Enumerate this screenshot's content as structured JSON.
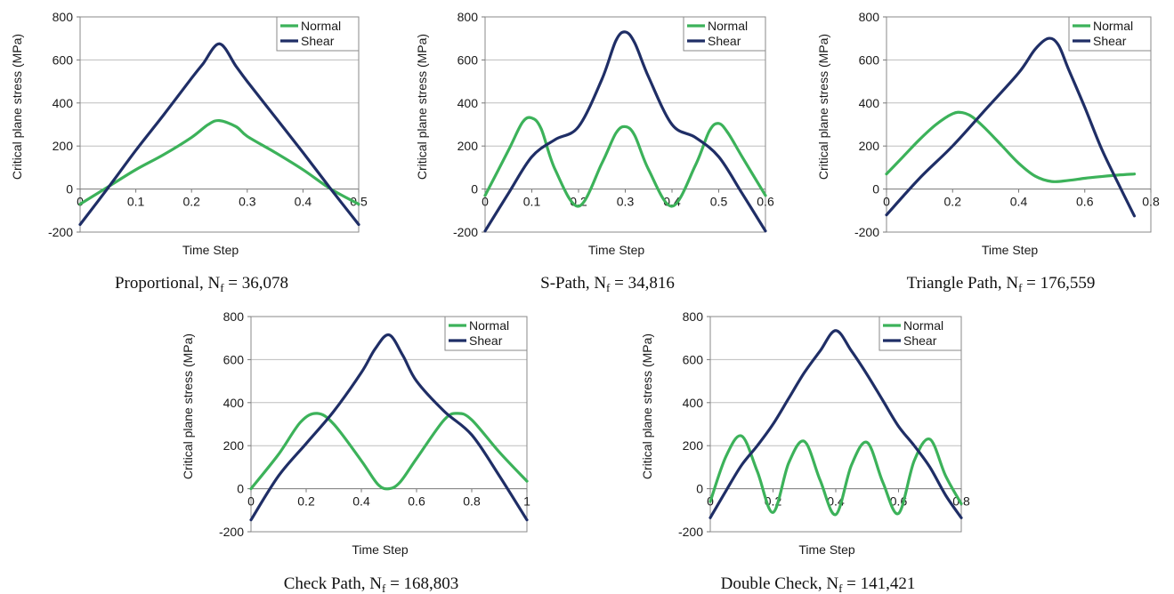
{
  "colors": {
    "normal": "#3cb25a",
    "shear": "#1f2e66",
    "grid": "#bdbdbd",
    "axis": "#8a8a8a"
  },
  "chart_data": [
    {
      "type": "line",
      "caption": "Proportional, N",
      "caption_sub": "f",
      "caption_value": " = 36,078",
      "xlabel": "Time Step",
      "ylabel": "Critical plane stress (MPa)",
      "xlim": [
        0,
        0.5
      ],
      "ylim": [
        -200,
        800
      ],
      "xticks": [
        0,
        0.1,
        0.2,
        0.3,
        0.4,
        0.5
      ],
      "xtick_labels": [
        "0",
        "0.1",
        "0.2",
        "0.3",
        "0.4",
        "0.5"
      ],
      "yticks": [
        -200,
        0,
        200,
        400,
        600,
        800
      ],
      "ytick_labels": [
        "-200",
        "0",
        "200",
        "400",
        "600",
        "800"
      ],
      "grid": true,
      "legend_position": "top-right",
      "series": [
        {
          "name": "Normal",
          "x": [
            0,
            0.05,
            0.1,
            0.15,
            0.2,
            0.23,
            0.25,
            0.28,
            0.3,
            0.35,
            0.4,
            0.45,
            0.5
          ],
          "y": [
            -70,
            10,
            90,
            160,
            240,
            300,
            318,
            290,
            245,
            170,
            90,
            0,
            -70
          ]
        },
        {
          "name": "Shear",
          "x": [
            0,
            0.05,
            0.1,
            0.15,
            0.2,
            0.22,
            0.25,
            0.28,
            0.3,
            0.35,
            0.4,
            0.45,
            0.5
          ],
          "y": [
            -165,
            5,
            180,
            345,
            515,
            580,
            675,
            570,
            500,
            335,
            170,
            0,
            -165
          ]
        }
      ]
    },
    {
      "type": "line",
      "caption": "S-Path, N",
      "caption_sub": "f",
      "caption_value": " = 34,816",
      "xlabel": "Time Step",
      "ylabel": "Critical plane stress (MPa)",
      "xlim": [
        0,
        0.6
      ],
      "ylim": [
        -200,
        800
      ],
      "xticks": [
        0,
        0.1,
        0.2,
        0.3,
        0.4,
        0.5,
        0.6
      ],
      "xtick_labels": [
        "0",
        "0.1",
        "0.2",
        "0.3",
        "0.4",
        "0.5",
        "0.6"
      ],
      "yticks": [
        -200,
        0,
        200,
        400,
        600,
        800
      ],
      "ytick_labels": [
        "-200",
        "0",
        "200",
        "400",
        "600",
        "800"
      ],
      "grid": true,
      "legend_position": "top-right",
      "series": [
        {
          "name": "Normal",
          "x": [
            0,
            0.05,
            0.08,
            0.1,
            0.12,
            0.15,
            0.2,
            0.25,
            0.28,
            0.3,
            0.32,
            0.35,
            0.4,
            0.45,
            0.48,
            0.5,
            0.52,
            0.55,
            0.6
          ],
          "y": [
            -30,
            180,
            310,
            330,
            280,
            90,
            -80,
            120,
            260,
            290,
            250,
            90,
            -80,
            110,
            270,
            305,
            260,
            150,
            -30
          ]
        },
        {
          "name": "Shear",
          "x": [
            0,
            0.05,
            0.1,
            0.15,
            0.2,
            0.25,
            0.28,
            0.3,
            0.32,
            0.35,
            0.4,
            0.45,
            0.5,
            0.55,
            0.6
          ],
          "y": [
            -195,
            -20,
            150,
            230,
            290,
            510,
            690,
            730,
            680,
            520,
            300,
            240,
            150,
            -20,
            -195
          ]
        }
      ]
    },
    {
      "type": "line",
      "caption": "Triangle Path, N",
      "caption_sub": "f",
      "caption_value": " = 176,559",
      "xlabel": "Time Step",
      "ylabel": "Critical plane stress (MPa)",
      "xlim": [
        0,
        0.8
      ],
      "ylim": [
        -200,
        800
      ],
      "xticks": [
        0,
        0.2,
        0.4,
        0.6,
        0.8
      ],
      "xtick_labels": [
        "0",
        "0.2",
        "0.4",
        "0.6",
        "0.8"
      ],
      "yticks": [
        -200,
        0,
        200,
        400,
        600,
        800
      ],
      "ytick_labels": [
        "-200",
        "0",
        "200",
        "400",
        "600",
        "800"
      ],
      "grid": true,
      "legend_position": "top-right",
      "series": [
        {
          "name": "Normal",
          "x": [
            0,
            0.05,
            0.1,
            0.15,
            0.2,
            0.23,
            0.26,
            0.3,
            0.35,
            0.4,
            0.45,
            0.5,
            0.55,
            0.6,
            0.65,
            0.7,
            0.75
          ],
          "y": [
            70,
            150,
            230,
            300,
            350,
            355,
            335,
            280,
            200,
            120,
            60,
            35,
            40,
            50,
            58,
            65,
            70
          ]
        },
        {
          "name": "Shear",
          "x": [
            0,
            0.1,
            0.2,
            0.3,
            0.4,
            0.45,
            0.49,
            0.52,
            0.55,
            0.6,
            0.65,
            0.7,
            0.75
          ],
          "y": [
            -120,
            50,
            200,
            370,
            540,
            650,
            700,
            670,
            560,
            380,
            190,
            30,
            -125
          ]
        }
      ]
    },
    {
      "type": "line",
      "caption": "Check Path, N",
      "caption_sub": "f",
      "caption_value": " = 168,803",
      "xlabel": "Time Step",
      "ylabel": "Critical plane stress (MPa)",
      "xlim": [
        0,
        1
      ],
      "ylim": [
        -200,
        800
      ],
      "xticks": [
        0,
        0.2,
        0.4,
        0.6,
        0.8,
        1
      ],
      "xtick_labels": [
        "0",
        "0.2",
        "0.4",
        "0.6",
        "0.8",
        "1"
      ],
      "yticks": [
        -200,
        0,
        200,
        400,
        600,
        800
      ],
      "ytick_labels": [
        "-200",
        "0",
        "200",
        "400",
        "600",
        "800"
      ],
      "grid": true,
      "legend_position": "top-right",
      "series": [
        {
          "name": "Normal",
          "x": [
            0,
            0.1,
            0.18,
            0.24,
            0.3,
            0.4,
            0.46,
            0.5,
            0.54,
            0.6,
            0.7,
            0.75,
            0.8,
            0.9,
            1
          ],
          "y": [
            0,
            160,
            310,
            350,
            300,
            130,
            20,
            0,
            30,
            140,
            320,
            350,
            320,
            170,
            35
          ]
        },
        {
          "name": "Shear",
          "x": [
            0,
            0.1,
            0.2,
            0.3,
            0.4,
            0.45,
            0.5,
            0.55,
            0.6,
            0.7,
            0.8,
            0.9,
            1
          ],
          "y": [
            -145,
            60,
            210,
            360,
            540,
            650,
            715,
            620,
            500,
            360,
            250,
            60,
            -145
          ]
        }
      ]
    },
    {
      "type": "line",
      "caption": "Double Check, N",
      "caption_sub": "f",
      "caption_value": " = 141,421",
      "xlabel": "Time Step",
      "ylabel": "Critical plane stress (MPa)",
      "xlim": [
        0,
        0.8
      ],
      "ylim": [
        -200,
        800
      ],
      "xticks": [
        0,
        0.2,
        0.4,
        0.6,
        0.8
      ],
      "xtick_labels": [
        "0",
        "0.2",
        "0.4",
        "0.6",
        "0.8"
      ],
      "yticks": [
        -200,
        0,
        200,
        400,
        600,
        800
      ],
      "ytick_labels": [
        "-200",
        "0",
        "200",
        "400",
        "600",
        "800"
      ],
      "grid": true,
      "legend_position": "top-right",
      "series": [
        {
          "name": "Normal",
          "x": [
            0,
            0.05,
            0.1,
            0.15,
            0.2,
            0.25,
            0.3,
            0.35,
            0.4,
            0.45,
            0.5,
            0.55,
            0.6,
            0.65,
            0.7,
            0.75,
            0.8
          ],
          "y": [
            -60,
            150,
            245,
            80,
            -110,
            120,
            220,
            40,
            -120,
            110,
            215,
            30,
            -115,
            130,
            230,
            60,
            -70
          ]
        },
        {
          "name": "Shear",
          "x": [
            0,
            0.05,
            0.1,
            0.15,
            0.2,
            0.25,
            0.3,
            0.35,
            0.4,
            0.45,
            0.5,
            0.55,
            0.6,
            0.65,
            0.7,
            0.75,
            0.8
          ],
          "y": [
            -135,
            -10,
            110,
            200,
            300,
            420,
            540,
            640,
            735,
            640,
            530,
            410,
            290,
            200,
            100,
            -30,
            -135
          ]
        }
      ]
    }
  ]
}
